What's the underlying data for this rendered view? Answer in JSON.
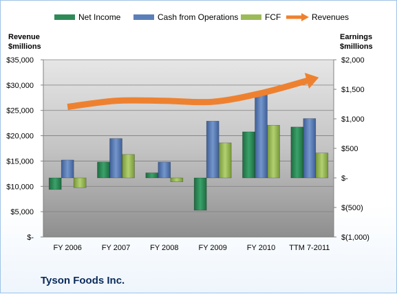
{
  "chart_data": {
    "type": "bar",
    "company": "Tyson Foods Inc.",
    "categories": [
      "FY 2006",
      "FY 2007",
      "FY 2008",
      "FY 2009",
      "FY 2010",
      "TTM 7-2011"
    ],
    "series": [
      {
        "name": "Net Income",
        "axis": "right",
        "kind": "bar",
        "color": "#2e8b57",
        "values": [
          -196,
          268,
          86,
          -547,
          780,
          862
        ]
      },
      {
        "name": "Cash from Operations",
        "axis": "right",
        "kind": "bar",
        "color": "#5b7fb8",
        "values": [
          303,
          667,
          267,
          961,
          1433,
          1005
        ]
      },
      {
        "name": "FCF",
        "axis": "right",
        "kind": "bar",
        "color": "#9bbb59",
        "values": [
          -165,
          397,
          -65,
          594,
          892,
          422
        ]
      },
      {
        "name": "Revenues",
        "axis": "left",
        "kind": "line",
        "color": "#ee8130",
        "values": [
          25700,
          26900,
          26900,
          26700,
          28400,
          31000
        ]
      }
    ],
    "left_axis": {
      "title_line1": "Revenue",
      "title_line2": "$millions",
      "ylim": [
        0,
        35000
      ],
      "tick_labels": [
        "$-",
        "$5,000",
        "$10,000",
        "$15,000",
        "$20,000",
        "$25,000",
        "$30,000",
        "$35,000"
      ]
    },
    "right_axis": {
      "title_line1": "Earnings",
      "title_line2": "$millions",
      "ylim": [
        -1000,
        2000
      ],
      "tick_labels": [
        "$(1,000)",
        "$(500)",
        "$-",
        "$500",
        "$1,000",
        "$1,500",
        "$2,000"
      ]
    },
    "grid": true,
    "legend_position": "top"
  }
}
